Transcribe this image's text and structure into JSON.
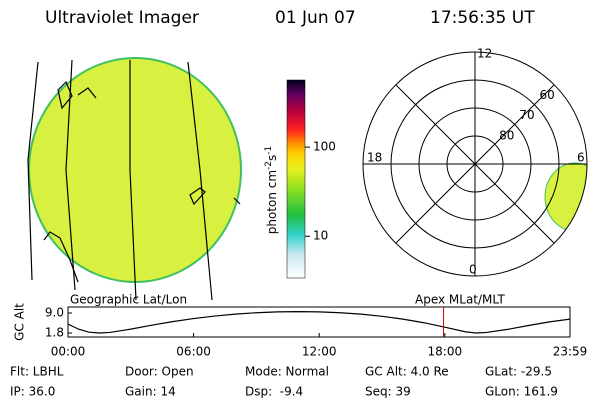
{
  "header": {
    "instrument": "Ultraviolet Imager",
    "date": "01 Jun 07",
    "time": "17:56:35 UT"
  },
  "colorbar": {
    "label": "photon cm",
    "sup1": "-2",
    "mid": "s",
    "sup2": "-1",
    "clim": [
      3.4,
      566
    ],
    "ticks": [
      10,
      100
    ],
    "log": true
  },
  "polar": {
    "rlim": [
      90,
      50
    ],
    "ring_labels": [
      60,
      70,
      80
    ],
    "mlt_labels": [
      "12",
      "18",
      "6",
      "0"
    ]
  },
  "labels": {
    "geo": "Geographic Lat/Lon",
    "apex": "Apex MLat/MLT"
  },
  "chart_data": {
    "type": "line",
    "ylabel": "GC Alt",
    "color": "#000000",
    "marker_color": "#cc0000",
    "marker_x": 17.94,
    "x": [
      0,
      0.5,
      1,
      1.5,
      2,
      3,
      4,
      5,
      6,
      7,
      8,
      9,
      10,
      11,
      12,
      13,
      14,
      15,
      16,
      17,
      18,
      19,
      19.5,
      20,
      21,
      22,
      23,
      23.98
    ],
    "values": [
      5.0,
      3.2,
      2.1,
      1.8,
      2.0,
      3.2,
      4.6,
      5.9,
      7.0,
      7.9,
      8.6,
      9.1,
      9.4,
      9.5,
      9.4,
      9.1,
      8.6,
      7.8,
      6.8,
      5.5,
      3.9,
      2.2,
      1.8,
      2.0,
      3.1,
      4.5,
      5.8,
      6.8
    ],
    "xlim": [
      0,
      23.98
    ],
    "ylim": [
      0.36,
      11.16
    ],
    "xticks": [
      {
        "value": 0,
        "label": "00:00"
      },
      {
        "value": 6,
        "label": "06:00"
      },
      {
        "value": 12,
        "label": "12:00"
      },
      {
        "value": 18,
        "label": "18:00"
      },
      {
        "value": 23.98,
        "label": "23:59"
      }
    ],
    "yticks": [
      {
        "value": 9.0,
        "label": "9.0"
      },
      {
        "value": 1.8,
        "label": "1.8"
      }
    ]
  },
  "footer": {
    "rows": [
      [
        "Flt: LBHL",
        "Door: Open",
        "Mode: Normal",
        "GC Alt: 4.0 Re",
        "GLat: -29.5"
      ],
      [
        "IP: 36.0",
        "Gain: 14",
        "Dsp:  -9.4",
        "Seq: 39",
        "GLon: 161.9"
      ]
    ]
  }
}
